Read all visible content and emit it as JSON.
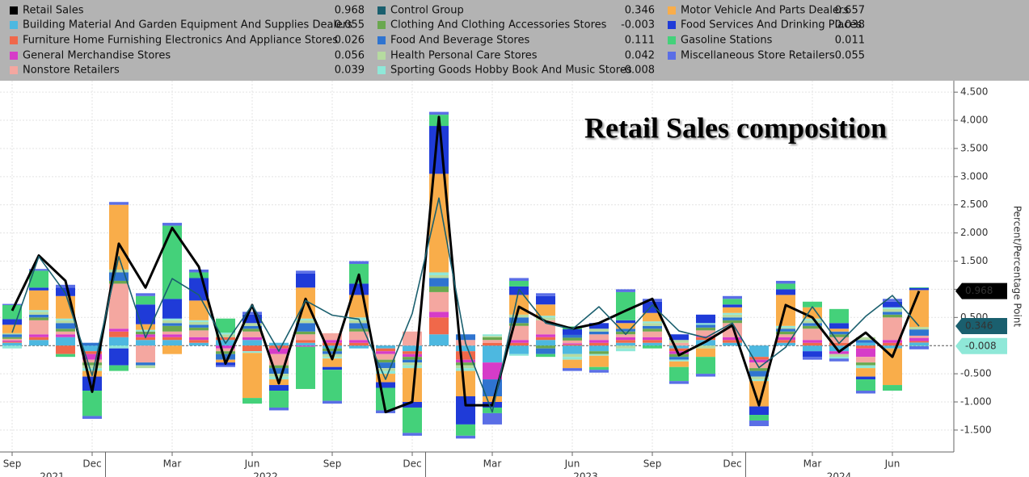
{
  "chart_data": {
    "type": "bar",
    "title": "Retail Sales composition",
    "y_axis_label": "Percent/Percentage Point",
    "categories": [
      "Sep",
      null,
      null,
      "Dec",
      null,
      null,
      "Mar",
      null,
      null,
      "Jun",
      null,
      null,
      "Sep",
      null,
      null,
      "Dec",
      null,
      null,
      "Mar",
      null,
      null,
      "Jun",
      null,
      null,
      "Sep",
      null,
      null,
      "Dec",
      null,
      null,
      "Mar",
      null,
      null,
      "Jun",
      null
    ],
    "year_labels": [
      "2021",
      "2022",
      "2023",
      "2024"
    ],
    "ylim": [
      -1.86,
      4.66
    ],
    "yticks": [
      {
        "value": -1.5,
        "label": "-1.500"
      },
      {
        "value": -1,
        "label": "-1.000"
      },
      {
        "value": -0.5,
        "label": "-0.500"
      },
      {
        "value": 0.5,
        "label": "0.500"
      },
      {
        "value": 1,
        "label": "1.000"
      },
      {
        "value": 1.5,
        "label": "1.500"
      },
      {
        "value": 2,
        "label": "2.000"
      },
      {
        "value": 2.5,
        "label": "2.500"
      },
      {
        "value": 3,
        "label": "3.000"
      },
      {
        "value": 3.5,
        "label": "3.500"
      },
      {
        "value": 4,
        "label": "4.000"
      },
      {
        "value": 4.5,
        "label": "4.500"
      }
    ],
    "grid": true,
    "series": [
      {
        "name": "Retail Sales",
        "type": "line",
        "color": "#000000",
        "values": [
          0.62,
          1.6,
          1.15,
          -0.82,
          1.81,
          1.03,
          2.09,
          1.4,
          -0.32,
          0.72,
          -0.67,
          0.83,
          -0.24,
          1.26,
          -1.18,
          -1.0,
          4.06,
          -1.06,
          -1.06,
          0.69,
          0.43,
          0.3,
          0.4,
          0.62,
          0.83,
          -0.17,
          0.07,
          0.36,
          -1.06,
          0.72,
          0.5,
          -0.11,
          0.23,
          -0.2,
          0.968
        ]
      },
      {
        "name": "Building Material And Garden Equipment And Supplies Dealers",
        "type": "bar",
        "color": "#4db8e0",
        "values": [
          0.05,
          0.1,
          0.15,
          -0.1,
          0.15,
          0.1,
          0.1,
          0.05,
          0.1,
          0.1,
          0.05,
          0.05,
          -0.05,
          -0.05,
          -0.05,
          -0.1,
          0.2,
          -0.1,
          -0.3,
          -0.15,
          0.1,
          -0.15,
          -0.1,
          0.05,
          0.05,
          -0.05,
          0.1,
          0.05,
          -0.2,
          0.05,
          -0.1,
          -0.1,
          0.05,
          -0.05,
          0.055
        ]
      },
      {
        "name": "Furniture Home Furnishing Electronics And Appliance Stores",
        "type": "bar",
        "color": "#f0684a",
        "values": [
          0.02,
          0.05,
          -0.15,
          -0.05,
          0.1,
          0.05,
          0.05,
          0.05,
          0.05,
          -0.1,
          -0.05,
          0.05,
          0.05,
          0.05,
          -0.05,
          -0.05,
          0.3,
          -0.15,
          0.05,
          0.05,
          0.05,
          0.02,
          0.05,
          0.05,
          0.05,
          -0.05,
          0.05,
          0.05,
          -0.05,
          0.05,
          0.05,
          0.05,
          -0.05,
          0.05,
          0.026
        ]
      },
      {
        "name": "General Merchandise Stores",
        "type": "bar",
        "color": "#d63cc8",
        "values": [
          0.02,
          0.05,
          0.05,
          -0.1,
          0.05,
          0.05,
          0.05,
          0.05,
          -0.05,
          0.05,
          -0.1,
          -0.02,
          0.05,
          0.05,
          -0.05,
          -0.05,
          0.1,
          -0.05,
          -0.3,
          0.05,
          0.05,
          0.02,
          0.05,
          0.05,
          0.05,
          -0.05,
          0.02,
          0.05,
          -0.05,
          0.05,
          0.05,
          -0.05,
          -0.15,
          0.05,
          0.056
        ]
      },
      {
        "name": "Nonstore Retailers",
        "type": "bar",
        "color": "#f4a7a0",
        "values": [
          0.03,
          0.25,
          0.05,
          -0.05,
          0.8,
          -0.3,
          0.05,
          0.12,
          -0.05,
          0.1,
          -0.2,
          0.1,
          0.12,
          0.15,
          -0.1,
          0.25,
          0.35,
          0.1,
          0.05,
          0.25,
          0.25,
          0.05,
          0.1,
          0.05,
          0.1,
          0.05,
          0.1,
          0.25,
          -0.1,
          0.05,
          0.2,
          0.1,
          -0.1,
          0.4,
          0.039
        ]
      },
      {
        "name": "Control Group",
        "type": "line",
        "color": "#1a5f6e",
        "values": [
          0.23,
          1.58,
          0.93,
          -0.53,
          1.58,
          0.14,
          1.19,
          0.9,
          0.04,
          0.72,
          -0.1,
          0.8,
          0.54,
          0.47,
          -0.6,
          0.57,
          2.62,
          0.04,
          -1.18,
          1.0,
          0.4,
          0.29,
          0.69,
          0.2,
          0.72,
          0.26,
          0.14,
          0.4,
          -0.39,
          -0.03,
          0.69,
          0.04,
          0.52,
          0.89,
          0.346
        ]
      },
      {
        "name": "Clothing And Clothing Accessories Stores",
        "type": "bar",
        "color": "#6aa84f",
        "values": [
          0.03,
          0.05,
          0.05,
          -0.05,
          0.05,
          0.05,
          0.1,
          0.05,
          -0.05,
          0.05,
          -0.05,
          0.05,
          -0.05,
          0.05,
          -0.05,
          -0.05,
          0.1,
          -0.05,
          0.05,
          0.05,
          -0.05,
          0.05,
          -0.05,
          0.05,
          0.05,
          -0.05,
          0.05,
          0.05,
          -0.05,
          0.05,
          0.05,
          0.05,
          -0.05,
          0.05,
          -0.003
        ]
      },
      {
        "name": "Food And Beverage Stores",
        "type": "bar",
        "color": "#2f74d0",
        "values": [
          0.05,
          0.05,
          0.1,
          0.05,
          0.15,
          -0.05,
          0.05,
          0.05,
          -0.1,
          0.05,
          -0.1,
          0.15,
          -0.05,
          0.1,
          -0.1,
          -0.05,
          0.15,
          0.1,
          -0.3,
          0.1,
          -0.1,
          0.05,
          0.05,
          0.05,
          0.05,
          -0.05,
          0.05,
          0.05,
          -0.1,
          0.05,
          0.05,
          0.05,
          0.05,
          0.05,
          0.111
        ]
      },
      {
        "name": "Health Personal Care Stores",
        "type": "bar",
        "color": "#b6dba0",
        "values": [
          0.02,
          0.05,
          0.05,
          -0.05,
          0.05,
          -0.05,
          0.05,
          0.05,
          0.05,
          0.05,
          -0.05,
          0.05,
          -0.05,
          0.05,
          -0.05,
          -0.05,
          0.05,
          -0.05,
          0.02,
          0.05,
          0.05,
          -0.05,
          0.05,
          -0.05,
          0.05,
          0.05,
          -0.05,
          0.05,
          -0.05,
          0.02,
          0.05,
          -0.05,
          0.05,
          0.05,
          0.042
        ]
      },
      {
        "name": "Sporting Goods Hobby Book And Music Stores",
        "type": "bar",
        "color": "#8fe8d8",
        "values": [
          -0.05,
          0.03,
          0.03,
          -0.05,
          -0.05,
          0.03,
          0.03,
          0.03,
          0.03,
          -0.03,
          -0.05,
          0.03,
          -0.03,
          0.05,
          -0.05,
          -0.05,
          0.05,
          -0.05,
          0.03,
          -0.03,
          0.03,
          -0.05,
          -0.03,
          -0.05,
          0.03,
          -0.03,
          0.03,
          0.03,
          -0.03,
          0.03,
          0.03,
          -0.03,
          -0.05,
          0.03,
          -0.008
        ]
      },
      {
        "name": "Motor Vehicle And Parts Dealers",
        "type": "bar",
        "color": "#f9ad4a",
        "values": [
          0.15,
          0.35,
          0.4,
          -0.1,
          1.15,
          0.1,
          -0.15,
          0.35,
          -0.05,
          -0.8,
          -0.1,
          0.55,
          -0.15,
          0.4,
          -0.15,
          -0.6,
          1.75,
          -0.45,
          -0.1,
          0.35,
          0.2,
          -0.15,
          -0.2,
          0.1,
          0.15,
          -0.1,
          -0.15,
          0.1,
          -0.45,
          0.55,
          0.2,
          0.05,
          -0.15,
          -0.65,
          0.657
        ]
      },
      {
        "name": "Food Services And Drinking Places",
        "type": "bar",
        "color": "#1f3bd8",
        "values": [
          0.1,
          0.05,
          0.15,
          -0.25,
          -0.3,
          0.35,
          0.35,
          0.4,
          -0.05,
          0.15,
          -0.1,
          0.25,
          -0.05,
          0.2,
          -0.1,
          -0.1,
          0.85,
          -0.5,
          -0.1,
          0.15,
          0.15,
          0.1,
          0.1,
          0.05,
          0.2,
          0.1,
          0.15,
          0.05,
          -0.15,
          0.1,
          -0.1,
          0.1,
          -0.05,
          0.1,
          0.038
        ]
      },
      {
        "name": "Gasoline Stations",
        "type": "bar",
        "color": "#44d17a",
        "values": [
          0.25,
          0.3,
          -0.05,
          -0.45,
          -0.1,
          0.15,
          1.3,
          0.1,
          0.25,
          -0.1,
          -0.3,
          -0.75,
          -0.55,
          0.35,
          -0.4,
          -0.45,
          0.2,
          -0.2,
          -0.1,
          0.1,
          -0.05,
          0.05,
          -0.05,
          0.5,
          -0.05,
          -0.25,
          -0.3,
          0.1,
          -0.1,
          0.1,
          0.1,
          0.25,
          -0.2,
          -0.1,
          0.011
        ]
      },
      {
        "name": "Miscellaneous Store Retailers",
        "type": "bar",
        "color": "#5a6ee6",
        "values": [
          0.02,
          0.03,
          0.05,
          -0.05,
          0.05,
          0.05,
          0.05,
          0.05,
          -0.03,
          0.05,
          -0.05,
          0.05,
          -0.05,
          0.05,
          -0.05,
          -0.05,
          0.05,
          -0.05,
          -0.2,
          0.05,
          0.05,
          -0.05,
          -0.05,
          0.05,
          0.05,
          -0.05,
          -0.05,
          0.05,
          -0.1,
          0.05,
          -0.05,
          -0.05,
          -0.05,
          0.05,
          -0.055
        ]
      }
    ]
  }
}
